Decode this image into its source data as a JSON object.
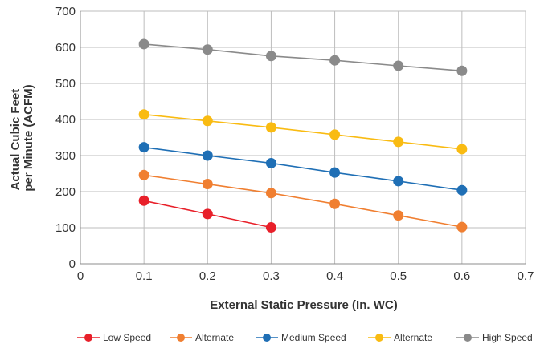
{
  "chart_data": {
    "type": "line",
    "title": "",
    "xlabel": "External Static Pressure (In. WC)",
    "ylabel_lines": [
      "Actual Cubic Feet",
      "per Minute (ACFM)"
    ],
    "xlim": [
      0,
      0.7
    ],
    "ylim": [
      0,
      700
    ],
    "x_ticks": [
      0,
      0.1,
      0.2,
      0.3,
      0.4,
      0.5,
      0.6,
      0.7
    ],
    "x_tick_labels": [
      "0",
      "0.1",
      "0.2",
      "0.3",
      "0.4",
      "0.5",
      "0.6",
      "0.7"
    ],
    "y_ticks": [
      0,
      100,
      200,
      300,
      400,
      500,
      600,
      700
    ],
    "y_tick_labels": [
      "0",
      "100",
      "200",
      "300",
      "400",
      "500",
      "600",
      "700"
    ],
    "grid": true,
    "legend_position": "bottom",
    "series": [
      {
        "name": "Low Speed",
        "color": "#e8202a",
        "x": [
          0.1,
          0.2,
          0.3
        ],
        "y": [
          175,
          138,
          101
        ]
      },
      {
        "name": "Alternate",
        "color": "#f07f31",
        "x": [
          0.1,
          0.2,
          0.3,
          0.4,
          0.5,
          0.6
        ],
        "y": [
          246,
          221,
          196,
          166,
          134,
          102
        ]
      },
      {
        "name": "Medium Speed",
        "color": "#1f6fb5",
        "x": [
          0.1,
          0.2,
          0.3,
          0.4,
          0.5,
          0.6
        ],
        "y": [
          323,
          300,
          279,
          253,
          229,
          204
        ]
      },
      {
        "name": "Alternate",
        "color": "#f9bb12",
        "x": [
          0.1,
          0.2,
          0.3,
          0.4,
          0.5,
          0.6
        ],
        "y": [
          414,
          396,
          378,
          358,
          338,
          318
        ]
      },
      {
        "name": "High Speed",
        "color": "#8a8a8a",
        "x": [
          0.1,
          0.2,
          0.3,
          0.4,
          0.5,
          0.6
        ],
        "y": [
          609,
          594,
          576,
          564,
          549,
          535
        ]
      }
    ]
  }
}
